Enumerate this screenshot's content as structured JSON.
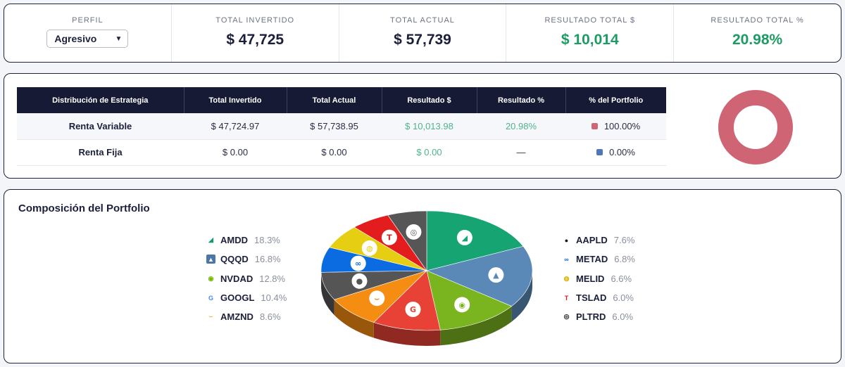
{
  "summary": {
    "profile": {
      "label": "PERFIL",
      "selected": "Agresivo"
    },
    "stats": [
      {
        "label": "TOTAL INVERTIDO",
        "value": "$ 47,725",
        "positive": false
      },
      {
        "label": "TOTAL ACTUAL",
        "value": "$ 57,739",
        "positive": false
      },
      {
        "label": "RESULTADO TOTAL $",
        "value": "$ 10,014",
        "positive": true
      },
      {
        "label": "RESULTADO TOTAL %",
        "value": "20.98%",
        "positive": true
      }
    ]
  },
  "strategy": {
    "headers": [
      "Distribución de Estrategia",
      "Total Invertido",
      "Total Actual",
      "Resultado $",
      "Resultado %",
      "% del Portfolio"
    ],
    "rows": [
      {
        "name": "Renta Variable",
        "invested": "$ 47,724.97",
        "current": "$ 57,738.95",
        "result": "$ 10,013.98",
        "result_pct": "20.98%",
        "portfolio_pct": "100.00%",
        "color": "#cf6574"
      },
      {
        "name": "Renta Fija",
        "invested": "$ 0.00",
        "current": "$ 0.00",
        "result": "$ 0.00",
        "result_pct": "—",
        "portfolio_pct": "0.00%",
        "color": "#4e76b8"
      }
    ],
    "donut": {
      "value": 100.0,
      "color": "#cf6574"
    }
  },
  "composition": {
    "title": "Composición del Portfolio",
    "legend_left": [
      {
        "name": "AMDD",
        "pct": "18.3%",
        "icon": "amd-icon"
      },
      {
        "name": "QQQD",
        "pct": "16.8%",
        "icon": "invesco-icon"
      },
      {
        "name": "NVDAD",
        "pct": "12.8%",
        "icon": "nvidia-icon"
      },
      {
        "name": "GOOGL",
        "pct": "10.4%",
        "icon": "google-icon"
      },
      {
        "name": "AMZND",
        "pct": "8.6%",
        "icon": "amazon-icon"
      }
    ],
    "legend_right": [
      {
        "name": "AAPLD",
        "pct": "7.6%",
        "icon": "apple-icon"
      },
      {
        "name": "METAD",
        "pct": "6.8%",
        "icon": "meta-icon"
      },
      {
        "name": "MELID",
        "pct": "6.6%",
        "icon": "mercadolibre-icon"
      },
      {
        "name": "TSLAD",
        "pct": "6.0%",
        "icon": "tesla-icon"
      },
      {
        "name": "PLTRD",
        "pct": "6.0%",
        "icon": "palantir-icon"
      }
    ],
    "slices": [
      {
        "name": "AMDD",
        "value": 18.3,
        "color": "#16a473",
        "icon": "amd-icon"
      },
      {
        "name": "QQQD",
        "value": 16.8,
        "color": "#5b89b7",
        "icon": "invesco-icon"
      },
      {
        "name": "NVDAD",
        "value": 12.8,
        "color": "#7ab41f",
        "icon": "nvidia-icon"
      },
      {
        "name": "GOOGL",
        "value": 10.4,
        "color": "#e84236",
        "icon": "google-icon"
      },
      {
        "name": "AMZND",
        "value": 8.6,
        "color": "#f58d12",
        "icon": "amazon-icon"
      },
      {
        "name": "AAPLD",
        "value": 7.6,
        "color": "#555555",
        "icon": "apple-icon"
      },
      {
        "name": "METAD",
        "value": 6.8,
        "color": "#0b6be0",
        "icon": "meta-icon"
      },
      {
        "name": "MELID",
        "value": 6.6,
        "color": "#e6cf12",
        "icon": "mercadolibre-icon"
      },
      {
        "name": "TSLAD",
        "value": 6.0,
        "color": "#e31d1d",
        "icon": "tesla-icon"
      },
      {
        "name": "PLTRD",
        "value": 6.0,
        "color": "#565656",
        "icon": "palantir-icon"
      }
    ]
  }
}
